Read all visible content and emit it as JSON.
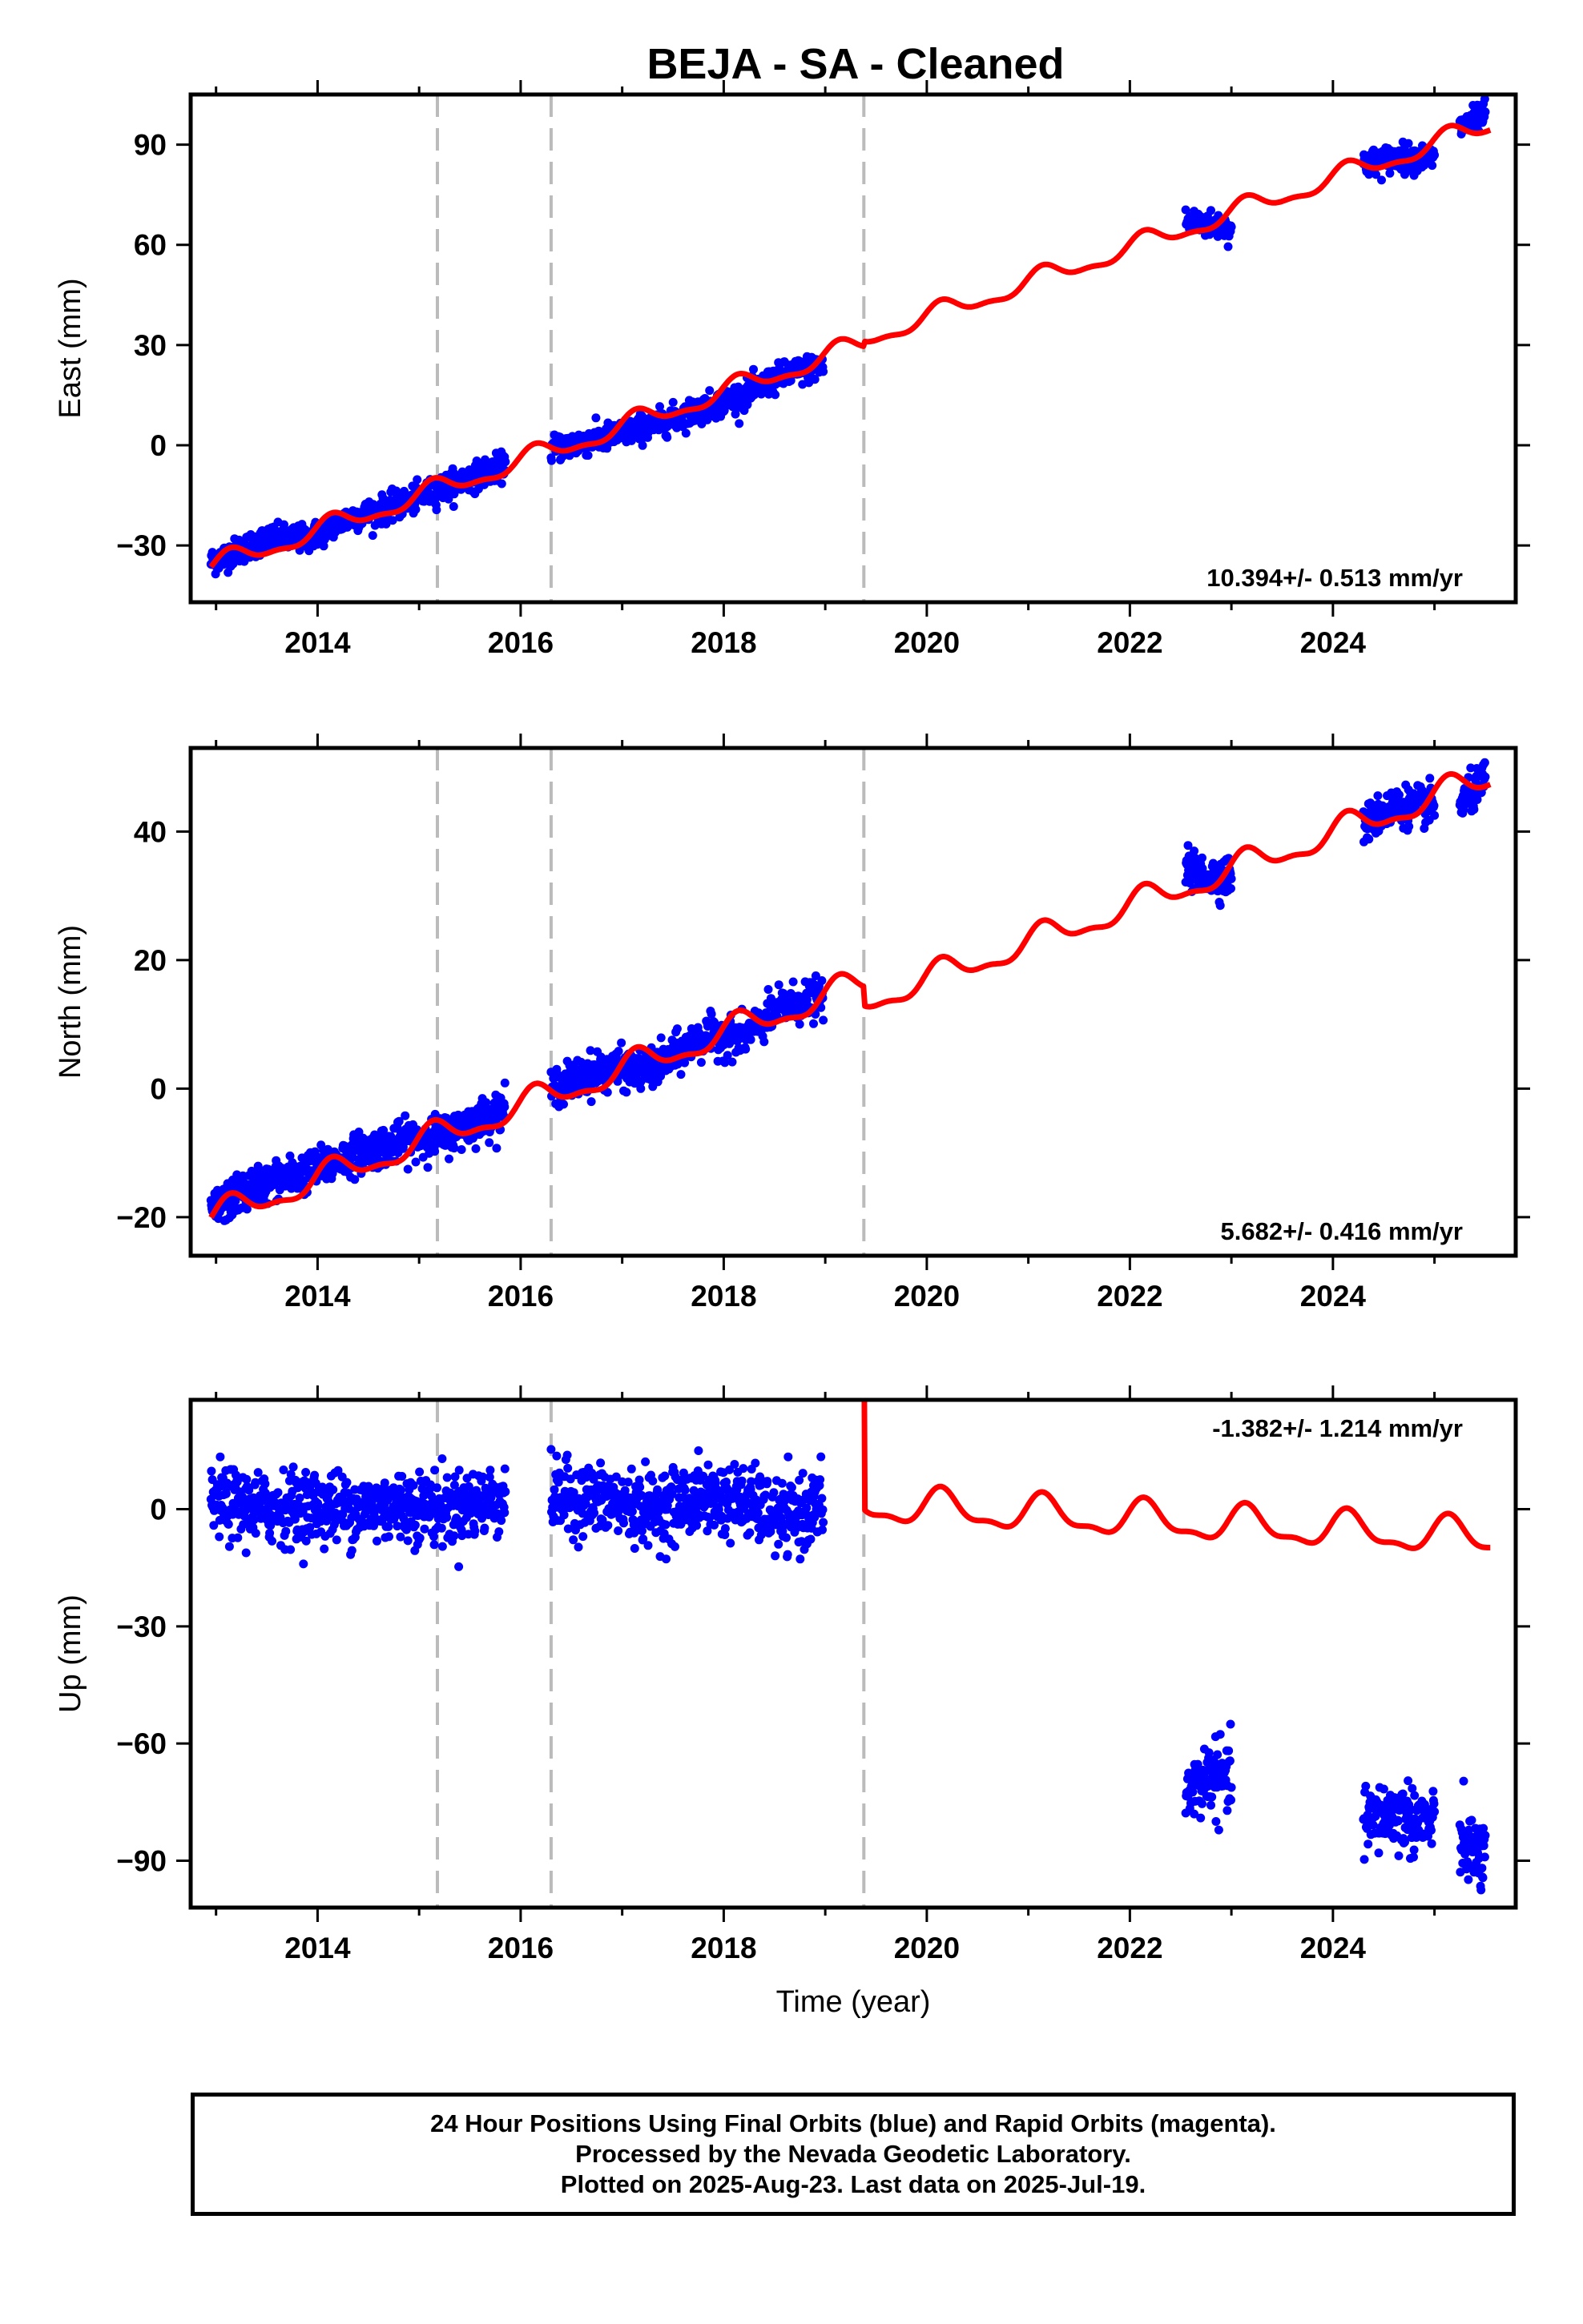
{
  "title": "BEJA  - SA - Cleaned",
  "colors": {
    "data": "#0000ff",
    "model": "#ff0000",
    "breaks": "#bbbbbb",
    "frame": "#000000"
  },
  "footer": {
    "line1": "24 Hour Positions Using Final Orbits (blue) and Rapid Orbits (magenta).",
    "line2": "Processed by the Nevada Geodetic Laboratory.",
    "line3": "Plotted on 2025-Aug-23. Last data on 2025-Jul-19."
  },
  "chart_data": [
    {
      "type": "scatter",
      "component": "east",
      "ylabel": "East (mm)",
      "xlabel": "",
      "xlim": [
        2012.75,
        2025.8
      ],
      "ylim": [
        -47,
        105
      ],
      "xticks": [
        2014,
        2016,
        2018,
        2020,
        2022,
        2024
      ],
      "yticks": [
        -30,
        0,
        30,
        60,
        90
      ],
      "rate": "10.394+/- 0.513 mm/yr",
      "rate_position": "bottom-right",
      "break_lines": [
        2015.18,
        2016.3,
        2019.38
      ],
      "data_segments": [
        {
          "x": [
            2012.95,
            2013.5,
            2013.9,
            2014.3,
            2014.8,
            2015.3,
            2015.85
          ],
          "y": [
            -35,
            -28,
            -28,
            -22,
            -18,
            -12,
            -6
          ]
        },
        {
          "x": [
            2016.3,
            2016.8,
            2017.3,
            2017.8,
            2018.2,
            2018.6,
            2018.98
          ],
          "y": [
            -1,
            2,
            6,
            11,
            15,
            21,
            24
          ]
        },
        {
          "x": [
            2022.55,
            2022.8,
            2023.0
          ],
          "y": [
            67,
            66,
            65
          ]
        },
        {
          "x": [
            2024.3,
            2024.6,
            2025.0
          ],
          "y": [
            84,
            86,
            86
          ]
        },
        {
          "x": [
            2025.25,
            2025.5
          ],
          "y": [
            95,
            99
          ]
        }
      ],
      "model_trend": {
        "x0": 2019.4,
        "y0": 32,
        "rate": 10.394,
        "seasonal_amp": 2.8,
        "step_at": 2019.38,
        "step": 1.5
      },
      "model_range": [
        2012.95,
        2025.55
      ]
    },
    {
      "type": "scatter",
      "component": "north",
      "ylabel": "North (mm)",
      "xlabel": "",
      "xlim": [
        2012.75,
        2025.8
      ],
      "ylim": [
        -26,
        53
      ],
      "xticks": [
        2014,
        2016,
        2018,
        2020,
        2022,
        2024
      ],
      "yticks": [
        -20,
        0,
        20,
        40
      ],
      "rate": "5.682+/- 0.416 mm/yr",
      "rate_position": "bottom-right",
      "break_lines": [
        2015.18,
        2016.3,
        2019.38
      ],
      "data_segments": [
        {
          "x": [
            2012.95,
            2013.4,
            2013.9,
            2014.4,
            2014.9,
            2015.3,
            2015.85
          ],
          "y": [
            -19,
            -15,
            -13,
            -10,
            -8,
            -7,
            -3
          ]
        },
        {
          "x": [
            2016.3,
            2016.8,
            2017.3,
            2017.8,
            2018.2,
            2018.6,
            2018.98
          ],
          "y": [
            0,
            3,
            3,
            8,
            8,
            13,
            14
          ]
        },
        {
          "x": [
            2022.55,
            2022.8,
            2023.0
          ],
          "y": [
            34,
            33,
            33
          ]
        },
        {
          "x": [
            2024.3,
            2024.6,
            2025.0
          ],
          "y": [
            41,
            44,
            44
          ]
        },
        {
          "x": [
            2025.25,
            2025.5
          ],
          "y": [
            44,
            48
          ]
        }
      ],
      "model_trend": {
        "x0": 2019.4,
        "y0": 13.5,
        "rate": 5.682,
        "seasonal_amp": 2.0,
        "step_at": 2019.38,
        "step": -3.0
      },
      "model_range": [
        2012.95,
        2025.55
      ]
    },
    {
      "type": "scatter",
      "component": "up",
      "ylabel": "Up (mm)",
      "xlabel": "Time (year)",
      "xlim": [
        2012.75,
        2025.8
      ],
      "ylim": [
        -102,
        28
      ],
      "xticks": [
        2014,
        2016,
        2018,
        2020,
        2022,
        2024
      ],
      "yticks": [
        -90,
        -60,
        -30,
        0
      ],
      "rate": "-1.382+/- 1.214 mm/yr",
      "rate_position": "top-right",
      "break_lines": [
        2015.18,
        2016.3,
        2019.38
      ],
      "data_segments": [
        {
          "x": [
            2012.95,
            2013.4,
            2013.9,
            2014.4,
            2014.9,
            2015.3,
            2015.85
          ],
          "y": [
            2,
            0,
            1,
            0,
            1,
            0,
            3
          ]
        },
        {
          "x": [
            2016.3,
            2016.8,
            2017.3,
            2017.8,
            2018.2,
            2018.6,
            2018.98
          ],
          "y": [
            3,
            2,
            0,
            3,
            2,
            -3,
            1
          ]
        },
        {
          "x": [
            2022.55,
            2022.8,
            2023.0
          ],
          "y": [
            -73,
            -68,
            -70
          ]
        },
        {
          "x": [
            2024.3,
            2024.6,
            2025.0
          ],
          "y": [
            -80,
            -78,
            -81
          ]
        },
        {
          "x": [
            2025.25,
            2025.5
          ],
          "y": [
            -85,
            -90
          ]
        }
      ],
      "model_trend": {
        "x0": 2019.4,
        "y0": 1.0,
        "rate": -1.382,
        "seasonal_amp": 4.2,
        "step_at": 2019.38,
        "step": -77.0
      },
      "model_range": [
        2012.95,
        2025.55
      ]
    }
  ]
}
